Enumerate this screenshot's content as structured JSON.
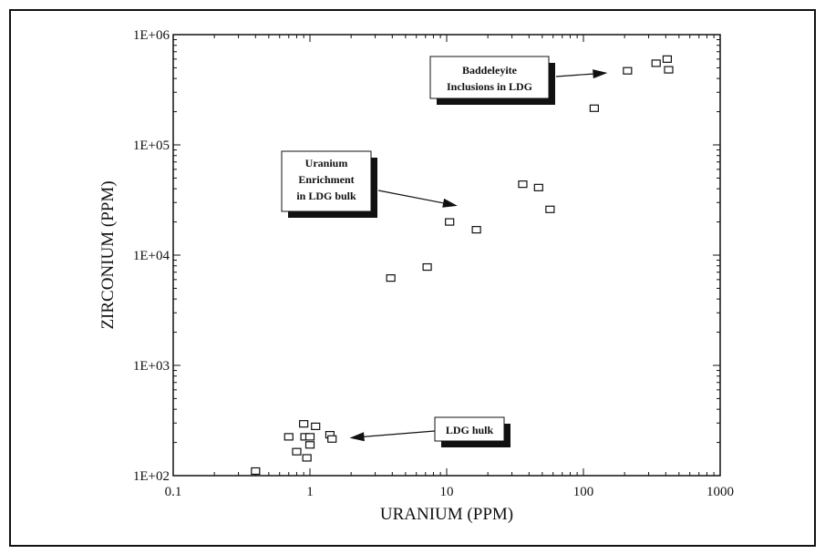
{
  "chart_data": {
    "type": "scatter",
    "title": "",
    "xlabel": "URANIUM (PPM)",
    "ylabel": "ZIRCONIUM (PPM)",
    "x_scale": "log",
    "y_scale": "log",
    "xlim": [
      0.1,
      1000
    ],
    "ylim": [
      100,
      1000000
    ],
    "x_tick_labels": [
      "0.1",
      "1",
      "10",
      "100",
      "1000"
    ],
    "y_tick_labels": [
      "1E+02",
      "1E+03",
      "1E+04",
      "1E+05",
      "1E+06"
    ],
    "grid": false,
    "marker": "open-square",
    "series": [
      {
        "points": [
          {
            "x": 0.4,
            "y": 110
          },
          {
            "x": 0.7,
            "y": 225
          },
          {
            "x": 0.8,
            "y": 165
          },
          {
            "x": 0.9,
            "y": 295
          },
          {
            "x": 0.92,
            "y": 225
          },
          {
            "x": 0.95,
            "y": 145
          },
          {
            "x": 1.0,
            "y": 225
          },
          {
            "x": 1.0,
            "y": 190
          },
          {
            "x": 1.1,
            "y": 280
          },
          {
            "x": 1.4,
            "y": 235
          },
          {
            "x": 1.45,
            "y": 215
          },
          {
            "x": 3.9,
            "y": 6200
          },
          {
            "x": 7.2,
            "y": 7800
          },
          {
            "x": 10.5,
            "y": 20000
          },
          {
            "x": 16.5,
            "y": 17000
          },
          {
            "x": 36,
            "y": 44000
          },
          {
            "x": 47,
            "y": 41000
          },
          {
            "x": 57,
            "y": 26000
          },
          {
            "x": 120,
            "y": 215000
          },
          {
            "x": 210,
            "y": 470000
          },
          {
            "x": 340,
            "y": 550000
          },
          {
            "x": 410,
            "y": 600000
          },
          {
            "x": 420,
            "y": 480000
          }
        ]
      }
    ],
    "annotations": [
      {
        "lines": [
          "Baddeleyite",
          "Inclusions in LDG"
        ],
        "arrow_to": {
          "x": 150,
          "y": 450000
        }
      },
      {
        "lines": [
          "Uranium",
          "Enrichment",
          "in LDG bulk"
        ],
        "arrow_to": {
          "x": 12,
          "y": 28000
        }
      },
      {
        "lines": [
          "LDG hulk"
        ],
        "arrow_to": {
          "x": 1.95,
          "y": 220
        }
      }
    ]
  }
}
